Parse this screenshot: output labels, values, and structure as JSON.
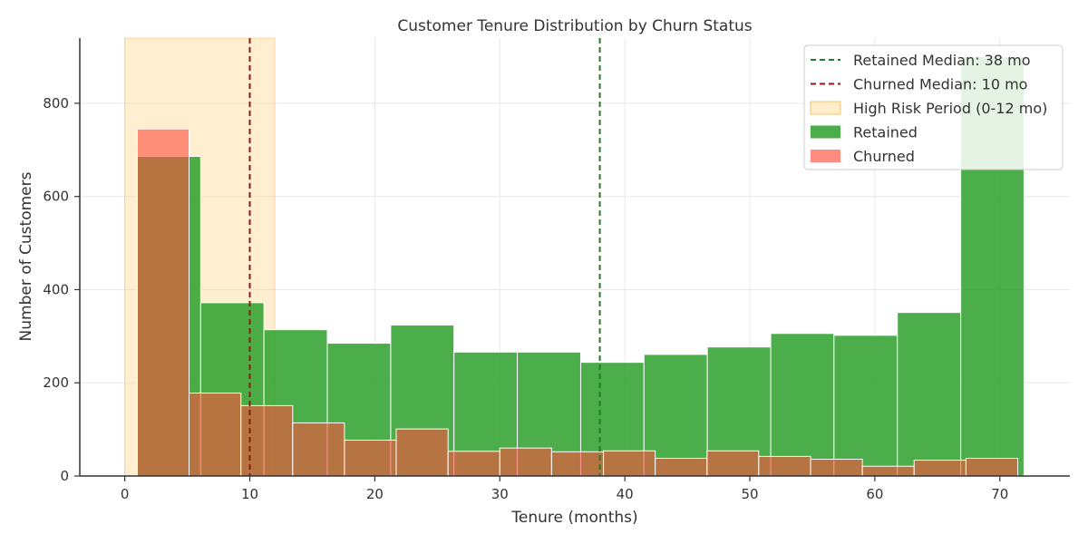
{
  "chart_data": {
    "type": "histogram",
    "title": "Customer Tenure Distribution by Churn Status",
    "xlabel": "Tenure (months)",
    "ylabel": "Number of Customers",
    "xlim": [
      -3.6,
      75.6
    ],
    "ylim": [
      0,
      940
    ],
    "x_ticks": [
      "0",
      "10",
      "20",
      "30",
      "40",
      "50",
      "60",
      "70"
    ],
    "y_ticks": [
      "0",
      "200",
      "400",
      "600",
      "800"
    ],
    "grid": true,
    "legend_position": "top-right",
    "series": [
      {
        "name": "Retained",
        "color": "#2ca02c",
        "bin_edges": [
          1,
          6.07,
          11.13,
          16.2,
          21.27,
          26.33,
          31.4,
          36.47,
          41.53,
          46.6,
          51.67,
          56.73,
          61.8,
          66.87,
          71.93
        ],
        "counts": [
          686,
          372,
          314,
          285,
          324,
          266,
          266,
          244,
          261,
          277,
          306,
          302,
          351,
          900
        ]
      },
      {
        "name": "Churned",
        "color": "#ff4d3d",
        "bin_edges": [
          1,
          5.14,
          9.29,
          13.43,
          17.57,
          21.71,
          25.86,
          30,
          34.14,
          38.29,
          42.43,
          46.57,
          50.71,
          54.86,
          59,
          63.14,
          67.29,
          71.43
        ],
        "counts": [
          745,
          178,
          151,
          114,
          77,
          101,
          53,
          60,
          52,
          54,
          38,
          54,
          42,
          36,
          21,
          34,
          38
        ]
      }
    ],
    "reference_lines": [
      {
        "name": "Retained Median: 38 mo",
        "x": 38,
        "color": "#2b7a2b"
      },
      {
        "name": "Churned Median: 10 mo",
        "x": 10,
        "color": "#8b1a1a"
      }
    ],
    "shaded_region": {
      "name": "High Risk Period (0-12 mo)",
      "x": [
        0,
        12
      ],
      "color": "#ffd68a"
    }
  }
}
